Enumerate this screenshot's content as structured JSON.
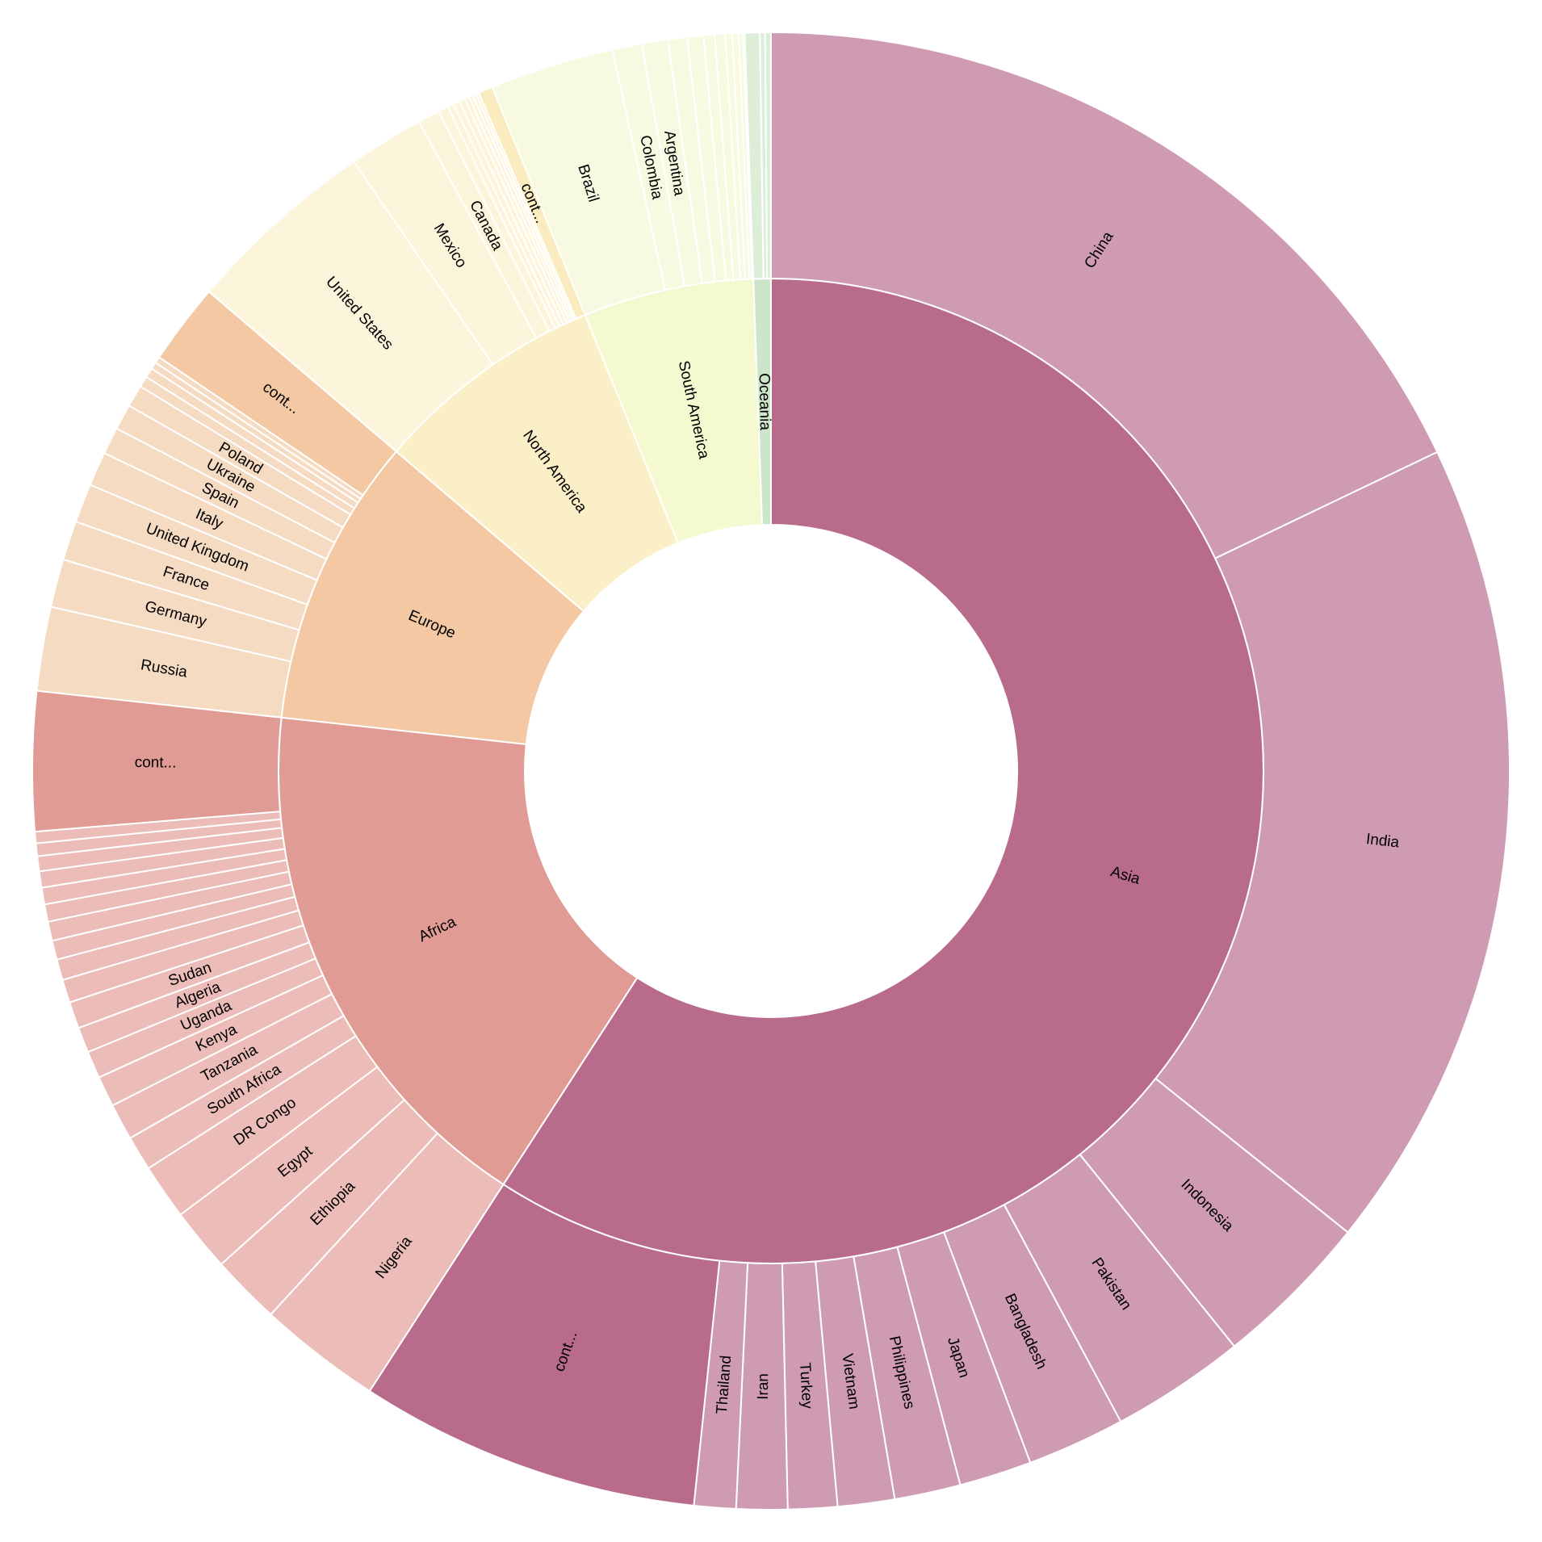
{
  "chart_data": {
    "type": "sunburst",
    "title": "",
    "root_start_deg": 0,
    "direction": "clockwise",
    "continents": [
      {
        "name": "Asia",
        "color": "#b86b8a",
        "child_color": "#cf9bb2",
        "cont_color": "#b86b8a",
        "children": [
          {
            "name": "China",
            "value": 1412
          },
          {
            "name": "India",
            "value": 1408
          },
          {
            "name": "Indonesia",
            "value": 274
          },
          {
            "name": "Pakistan",
            "value": 232
          },
          {
            "name": "Bangladesh",
            "value": 169
          },
          {
            "name": "Japan",
            "value": 125
          },
          {
            "name": "Philippines",
            "value": 114
          },
          {
            "name": "Vietnam",
            "value": 98
          },
          {
            "name": "Turkey",
            "value": 85
          },
          {
            "name": "Iran",
            "value": 88
          },
          {
            "name": "Thailand",
            "value": 72
          },
          {
            "name": "cont...",
            "value": 590,
            "rest": true
          }
        ]
      },
      {
        "name": "Africa",
        "color": "#e09b94",
        "child_color": "#ebbcb8",
        "cont_color": "#e09b94",
        "children": [
          {
            "name": "Nigeria",
            "value": 213
          },
          {
            "name": "Ethiopia",
            "value": 120
          },
          {
            "name": "Egypt",
            "value": 109
          },
          {
            "name": "DR Congo",
            "value": 96
          },
          {
            "name": "South Africa",
            "value": 60
          },
          {
            "name": "Tanzania",
            "value": 63
          },
          {
            "name": "Kenya",
            "value": 53
          },
          {
            "name": "Uganda",
            "value": 47
          },
          {
            "name": "Algeria",
            "value": 44
          },
          {
            "name": "Sudan",
            "value": 46
          },
          {
            "name": "",
            "value": 40
          },
          {
            "name": "",
            "value": 36
          },
          {
            "name": "",
            "value": 33
          },
          {
            "name": "",
            "value": 33
          },
          {
            "name": "",
            "value": 30
          },
          {
            "name": "",
            "value": 29
          },
          {
            "name": "",
            "value": 28
          },
          {
            "name": "",
            "value": 26
          },
          {
            "name": "",
            "value": 22
          },
          {
            "name": "",
            "value": 20
          },
          {
            "name": "cont...",
            "value": 240,
            "rest": true
          }
        ]
      },
      {
        "name": "Europe",
        "color": "#f3c8a3",
        "child_color": "#f6dbc3",
        "cont_color": "#f3c8a3",
        "children": [
          {
            "name": "Russia",
            "value": 145
          },
          {
            "name": "Germany",
            "value": 83
          },
          {
            "name": "France",
            "value": 68
          },
          {
            "name": "United Kingdom",
            "value": 67
          },
          {
            "name": "Italy",
            "value": 59
          },
          {
            "name": "Spain",
            "value": 47
          },
          {
            "name": "Ukraine",
            "value": 44
          },
          {
            "name": "Poland",
            "value": 38
          },
          {
            "name": "",
            "value": 19
          },
          {
            "name": "",
            "value": 17
          },
          {
            "name": "",
            "value": 12
          },
          {
            "name": "",
            "value": 11
          },
          {
            "name": "cont...",
            "value": 140,
            "rest": true
          }
        ]
      },
      {
        "name": "North America",
        "color": "#fbefc8",
        "child_color": "#fdf5db",
        "cont_color": "#faecbf",
        "children": [
          {
            "name": "United States",
            "value": 332
          },
          {
            "name": "Mexico",
            "value": 130
          },
          {
            "name": "Canada",
            "value": 38
          },
          {
            "name": "",
            "value": 17
          },
          {
            "name": "",
            "value": 11
          },
          {
            "name": "",
            "value": 11
          },
          {
            "name": "",
            "value": 10
          },
          {
            "name": "",
            "value": 8
          },
          {
            "name": "",
            "value": 7
          },
          {
            "name": "",
            "value": 6
          },
          {
            "name": "",
            "value": 5
          },
          {
            "name": "cont...",
            "value": 25,
            "rest": true
          }
        ]
      },
      {
        "name": "South America",
        "color": "#f4f9cf",
        "child_color": "#f7fae0",
        "cont_color": "#f4f9cf",
        "children": [
          {
            "name": "Brazil",
            "value": 214
          },
          {
            "name": "Colombia",
            "value": 51
          },
          {
            "name": "Argentina",
            "value": 45
          },
          {
            "name": "",
            "value": 33
          },
          {
            "name": "",
            "value": 28
          },
          {
            "name": "",
            "value": 19
          },
          {
            "name": "",
            "value": 18
          },
          {
            "name": "",
            "value": 12
          },
          {
            "name": "",
            "value": 11
          },
          {
            "name": "",
            "value": 7
          },
          {
            "name": "",
            "value": 3
          }
        ]
      },
      {
        "name": "Oceania",
        "color": "#cde6c9",
        "child_color": "#dcedd8",
        "cont_color": "#cde6c9",
        "children": [
          {
            "name": "",
            "value": 26
          },
          {
            "name": "",
            "value": 9
          },
          {
            "name": "",
            "value": 10
          }
        ]
      }
    ]
  }
}
